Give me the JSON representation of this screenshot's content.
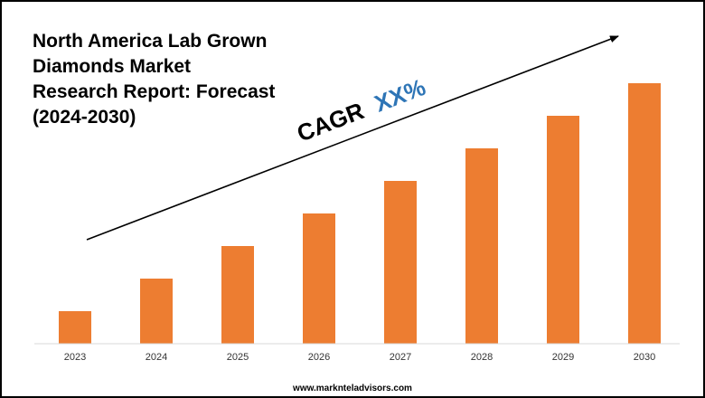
{
  "footer": {
    "url": "www.marknteladvisors.com"
  },
  "chart_data": {
    "type": "bar",
    "title_lines": [
      "North America Lab Grown",
      "Diamonds Market",
      "Research Report: Forecast",
      "(2024-2030)"
    ],
    "categories": [
      "2023",
      "2024",
      "2025",
      "2026",
      "2027",
      "2028",
      "2029",
      "2030"
    ],
    "values": [
      1,
      2,
      3,
      4,
      5,
      6,
      7,
      8
    ],
    "ylim": [
      0,
      10
    ],
    "xlabel": "",
    "ylabel": "",
    "annotation": {
      "prefix": "CAGR",
      "value": "XX%"
    },
    "grid": false,
    "legend": "none",
    "colors": {
      "bar": "#ED7D31",
      "cagr_value": "#2E75B6",
      "text": "#000000",
      "axis": "#D9D9D9"
    }
  }
}
